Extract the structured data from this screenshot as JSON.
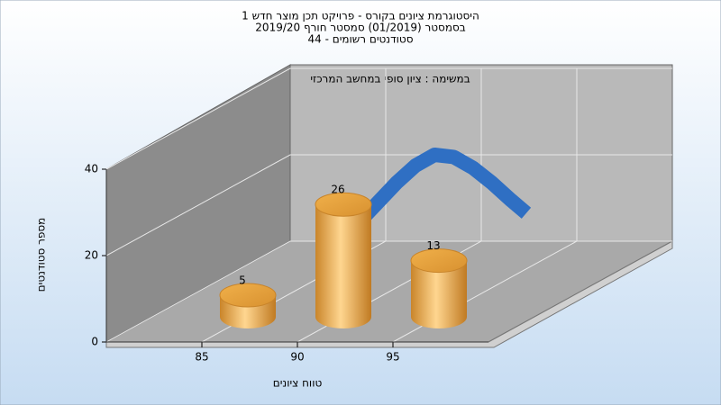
{
  "chart_data": {
    "type": "bar",
    "title": [
      "היסטוגרמת ציונים בקורס - פרויקט תכן מוצר חדש 1",
      "בסמסטר  (01/2019)  סמסטר חורף 2019/20",
      "סטודנטים רשומים - 44"
    ],
    "annotation": "במשימה : ציון סופי במחשב המרכזי",
    "y_label": "מספר סטודנטים",
    "x_label": "טווח ציונים",
    "x": [
      85,
      90,
      95
    ],
    "values": [
      5,
      26,
      13
    ],
    "color": "#e8a13a",
    "curve": {
      "type": "line",
      "color": "#2f6fc3",
      "x": [
        84.4,
        85.5,
        87,
        88,
        89,
        90,
        91,
        92,
        93,
        93.8
      ],
      "values": [
        5,
        10,
        17,
        21,
        23.5,
        23,
        20.5,
        17,
        13,
        10
      ]
    },
    "xlim": [
      80,
      100
    ],
    "xticks": [
      85,
      90,
      95
    ],
    "ylim": [
      0,
      40
    ],
    "yticks": [
      0,
      20,
      40
    ],
    "grid": true
  }
}
